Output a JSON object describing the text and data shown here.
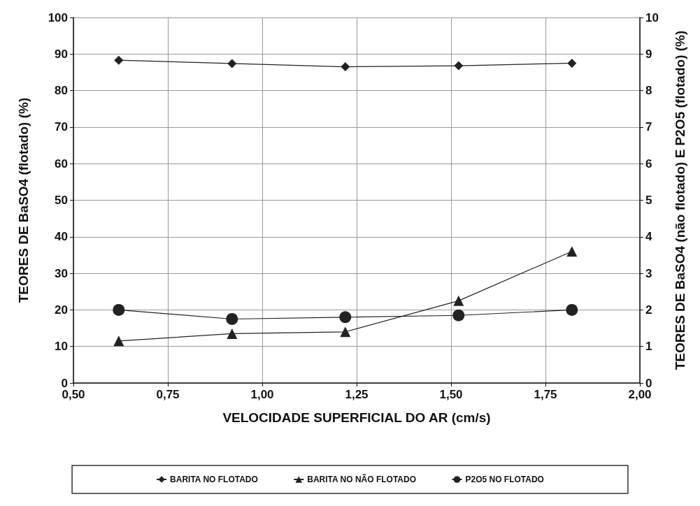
{
  "chart_data": {
    "type": "line",
    "xlabel": "VELOCIDADE SUPERFICIAL DO AR (cm/s)",
    "ylabel": "TEORES DE BaSO4 (flotado) (%)",
    "y2label": "TEORES DE BaSO4 (não flotado) E P2O5 (flotado) (%)",
    "x": [
      0.62,
      0.92,
      1.22,
      1.52,
      1.82
    ],
    "series": [
      {
        "name": "BARITA NO FLOTADO",
        "color": "#222222",
        "marker": "diamond",
        "values": [
          88.3,
          87.4,
          86.5,
          86.8,
          87.5
        ]
      },
      {
        "name": "BARITA NO NÃO FLOTADO",
        "color": "#222222",
        "marker": "triangle",
        "axis": "y2",
        "values": [
          1.15,
          1.35,
          1.4,
          2.25,
          3.6
        ]
      },
      {
        "name": "P2O5 NO FLOTADO",
        "color": "#222222",
        "marker": "circle",
        "axis": "y2",
        "values": [
          2.0,
          1.75,
          1.8,
          1.85,
          2.0
        ]
      }
    ],
    "xlim": [
      0.5,
      2.0
    ],
    "xticks": [
      {
        "value": 0.5,
        "label": "0,50"
      },
      {
        "value": 0.75,
        "label": "0,75"
      },
      {
        "value": 1.0,
        "label": "1,00"
      },
      {
        "value": 1.25,
        "label": "1,25"
      },
      {
        "value": 1.5,
        "label": "1,50"
      },
      {
        "value": 1.75,
        "label": "1,75"
      },
      {
        "value": 2.0,
        "label": "2,00"
      }
    ],
    "ylim": [
      0,
      100
    ],
    "yticks": [
      0,
      10,
      20,
      30,
      40,
      50,
      60,
      70,
      80,
      90,
      100
    ],
    "y2lim": [
      0,
      10
    ],
    "y2ticks": [
      0,
      1,
      2,
      3,
      4,
      5,
      6,
      7,
      8,
      9,
      10
    ],
    "grid": true,
    "legend": "bottom",
    "line_style": "solid"
  }
}
